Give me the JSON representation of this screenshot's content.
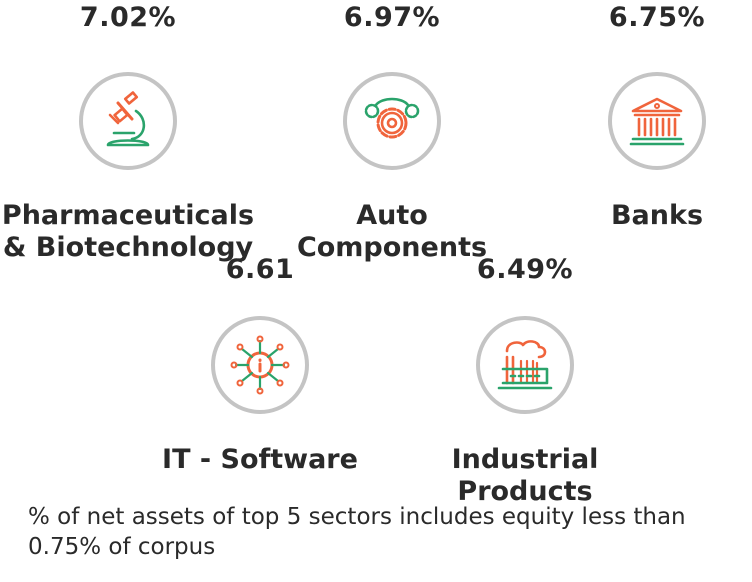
{
  "chart_data": {
    "type": "table",
    "items": [
      {
        "percent": "7.02%",
        "name_lines": [
          "Pharmaceuticals",
          "& Biotechnology"
        ],
        "icon": "microscope-icon"
      },
      {
        "percent": "6.97%",
        "name_lines": [
          "Auto",
          "Components"
        ],
        "icon": "gears-icon"
      },
      {
        "percent": "6.75%",
        "name_lines": [
          "Banks"
        ],
        "icon": "bank-building-icon"
      },
      {
        "percent": "6.61",
        "name_lines": [
          "IT - Software"
        ],
        "icon": "circuit-info-icon"
      },
      {
        "percent": "6.49%",
        "name_lines": [
          "Industrial",
          "Products"
        ],
        "icon": "factory-icon"
      }
    ],
    "footnote": "% of net assets of top 5 sectors includes equity less than 0.75% of corpus"
  },
  "colors": {
    "accent_orange": "#f0643c",
    "accent_green": "#2aa36b",
    "ring": "#c4c4c4",
    "text": "#2a2a2a"
  }
}
